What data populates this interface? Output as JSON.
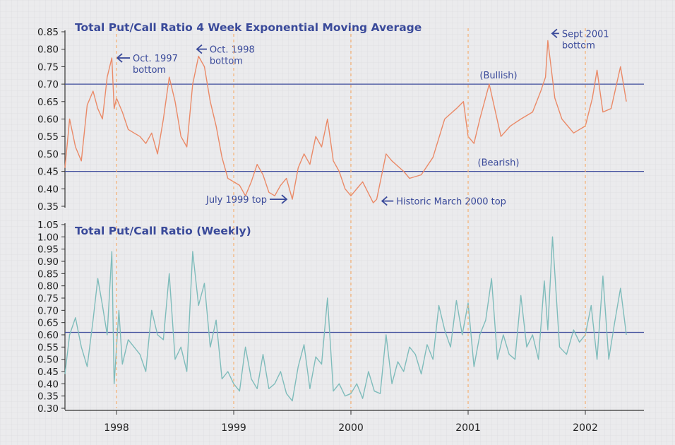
{
  "chart_data": [
    {
      "type": "line",
      "title": "Total Put/Call Ratio 4 Week Exponential Moving Average",
      "ylim": [
        0.35,
        0.85
      ],
      "yticks": [
        "0.85",
        "0.80",
        "0.75",
        "0.70",
        "0.65",
        "0.60",
        "0.55",
        "0.50",
        "0.45",
        "0.40",
        "0.35"
      ],
      "yticks_values": [
        0.85,
        0.8,
        0.75,
        0.7,
        0.65,
        0.6,
        0.55,
        0.5,
        0.45,
        0.4,
        0.35
      ],
      "reference_lines": [
        {
          "label": "(Bullish)",
          "value": 0.7
        },
        {
          "label": "(Bearish)",
          "value": 0.45
        }
      ],
      "annotations": [
        {
          "label_lines": [
            "Oct. 1997",
            "bottom"
          ],
          "x": 1997.97,
          "y": 0.775
        },
        {
          "label_lines": [
            "Oct. 1998",
            "bottom"
          ],
          "x": 1998.65,
          "y": 0.78
        },
        {
          "label_lines": [
            "July 1999 top"
          ],
          "x": 1999.5,
          "y": 0.37
        },
        {
          "label_lines": [
            "Historic March 2000 top"
          ],
          "x": 2000.23,
          "y": 0.365
        },
        {
          "label_lines": [
            "Sept 2001",
            "bottom"
          ],
          "x": 2001.68,
          "y": 0.825
        }
      ],
      "line_color": "#ea8a68",
      "series": [
        {
          "x": [
            1997.56,
            1997.6,
            1997.65,
            1997.7,
            1997.75,
            1997.8,
            1997.84,
            1997.88,
            1997.92,
            1997.96,
            1997.98,
            2000.0,
            2000.1,
            2000.19,
            2000.22,
            2000.3,
            2000.35,
            2000.45,
            2000.5,
            2000.6,
            2000.7,
            2000.8,
            2000.9,
            2000.96,
            2001.0,
            2001.05,
            2001.1,
            2001.18,
            2001.28,
            2001.36,
            2001.45,
            2001.55,
            2001.62,
            2001.66,
            2001.68,
            2001.74,
            2001.8,
            2001.9,
            2002.0,
            2002.06,
            2002.1,
            2002.15,
            2002.22,
            2002.3,
            2002.35
          ],
          "y": [
            0.46,
            0.6,
            0.52,
            0.48,
            0.64,
            0.68,
            0.63,
            0.6,
            0.72,
            0.775,
            0.63,
            0.38,
            0.42,
            0.36,
            0.37,
            0.5,
            0.48,
            0.45,
            0.43,
            0.44,
            0.49,
            0.6,
            0.63,
            0.65,
            0.55,
            0.53,
            0.6,
            0.7,
            0.55,
            0.58,
            0.6,
            0.62,
            0.68,
            0.72,
            0.825,
            0.66,
            0.6,
            0.56,
            0.58,
            0.66,
            0.74,
            0.62,
            0.63,
            0.75,
            0.65
          ]
        }
      ],
      "extra_points": {
        "x": [
          1998.0,
          1998.05,
          1998.1,
          1998.15,
          1998.2,
          1998.25,
          1998.3,
          1998.35,
          1998.4,
          1998.45,
          1998.5,
          1998.55,
          1998.6,
          1998.65,
          1998.7,
          1998.75,
          1998.8,
          1998.85,
          1998.9,
          1998.95,
          1999.0,
          1999.05,
          1999.1,
          1999.15,
          1999.2,
          1999.25,
          1999.3,
          1999.35,
          1999.4,
          1999.45,
          1999.5,
          1999.55,
          1999.6,
          1999.65,
          1999.7,
          1999.75,
          1999.8,
          1999.85,
          1999.9,
          1999.95
        ],
        "y": [
          0.66,
          0.62,
          0.57,
          0.56,
          0.55,
          0.53,
          0.56,
          0.5,
          0.6,
          0.72,
          0.65,
          0.55,
          0.52,
          0.7,
          0.78,
          0.75,
          0.65,
          0.58,
          0.49,
          0.43,
          0.42,
          0.41,
          0.38,
          0.42,
          0.47,
          0.44,
          0.39,
          0.38,
          0.41,
          0.43,
          0.37,
          0.46,
          0.5,
          0.47,
          0.55,
          0.52,
          0.6,
          0.48,
          0.45,
          0.4
        ]
      }
    },
    {
      "type": "line",
      "title": "Total Put/Call Ratio (Weekly)",
      "ylim": [
        0.28,
        1.05
      ],
      "yticks": [
        "1.05",
        "1.00",
        "0.95",
        "0.90",
        "0.85",
        "0.80",
        "0.75",
        "0.70",
        "0.65",
        "0.60",
        "0.55",
        "0.50",
        "0.45",
        "0.40",
        "0.35",
        "0.30"
      ],
      "yticks_values": [
        1.05,
        1.0,
        0.95,
        0.9,
        0.85,
        0.8,
        0.75,
        0.7,
        0.65,
        0.6,
        0.55,
        0.5,
        0.45,
        0.4,
        0.35,
        0.3
      ],
      "reference_lines": [
        {
          "label": "",
          "value": 0.61
        }
      ],
      "line_color": "#7fbcbb",
      "series": [
        {
          "x": [
            1997.56,
            1997.6,
            1997.65,
            1997.7,
            1997.75,
            1997.8,
            1997.84,
            1997.88,
            1997.92,
            1997.96,
            1997.98,
            1998.02,
            1998.05,
            1998.1,
            1998.15,
            1998.2,
            1998.25,
            1998.3,
            1998.35,
            1998.4,
            1998.45,
            1998.5,
            1998.55,
            1998.6,
            1998.65,
            1998.7,
            1998.75,
            1998.8,
            1998.85,
            1998.9,
            1998.95,
            1999.0,
            1999.05,
            1999.1,
            1999.15,
            1999.2,
            1999.25,
            1999.3,
            1999.35,
            1999.4,
            1999.45,
            1999.5,
            1999.55,
            1999.6,
            1999.65,
            1999.7,
            1999.75,
            1999.8,
            1999.85,
            1999.9,
            1999.95,
            2000.0,
            2000.05,
            2000.1,
            2000.15,
            2000.2,
            2000.25,
            2000.3,
            2000.35,
            2000.4,
            2000.45,
            2000.5,
            2000.55,
            2000.6,
            2000.65,
            2000.7,
            2000.75,
            2000.8,
            2000.85,
            2000.9,
            2000.95,
            2001.0,
            2001.05,
            2001.1,
            2001.15,
            2001.2,
            2001.25,
            2001.3,
            2001.35,
            2001.4,
            2001.45,
            2001.5,
            2001.55,
            2001.6,
            2001.65,
            2001.68,
            2001.72,
            2001.78,
            2001.84,
            2001.9,
            2001.95,
            2002.0,
            2002.05,
            2002.1,
            2002.15,
            2002.2,
            2002.25,
            2002.3,
            2002.35
          ],
          "y": [
            0.44,
            0.6,
            0.67,
            0.55,
            0.47,
            0.66,
            0.83,
            0.72,
            0.6,
            0.94,
            0.4,
            0.7,
            0.48,
            0.58,
            0.55,
            0.52,
            0.45,
            0.7,
            0.6,
            0.58,
            0.85,
            0.5,
            0.55,
            0.45,
            0.94,
            0.72,
            0.81,
            0.55,
            0.66,
            0.42,
            0.45,
            0.4,
            0.37,
            0.55,
            0.42,
            0.38,
            0.52,
            0.38,
            0.4,
            0.45,
            0.36,
            0.33,
            0.47,
            0.56,
            0.38,
            0.51,
            0.48,
            0.75,
            0.37,
            0.4,
            0.35,
            0.36,
            0.4,
            0.34,
            0.45,
            0.37,
            0.36,
            0.6,
            0.4,
            0.49,
            0.45,
            0.55,
            0.52,
            0.44,
            0.56,
            0.5,
            0.72,
            0.62,
            0.55,
            0.74,
            0.6,
            0.73,
            0.47,
            0.6,
            0.66,
            0.83,
            0.5,
            0.6,
            0.52,
            0.5,
            0.76,
            0.55,
            0.6,
            0.5,
            0.82,
            0.62,
            1.0,
            0.55,
            0.52,
            0.62,
            0.57,
            0.6,
            0.72,
            0.5,
            0.84,
            0.5,
            0.65,
            0.79,
            0.6
          ]
        }
      ]
    }
  ],
  "xaxis": {
    "ticks": [
      "1998",
      "1999",
      "2000",
      "2001",
      "2002"
    ],
    "tick_values": [
      1998,
      1999,
      2000,
      2001,
      2002
    ],
    "range": [
      1997.56,
      2002.5
    ]
  },
  "colors": {
    "title": "#3a4a9a",
    "annotation": "#3a4a9a",
    "reference_line": "#3e4c9c",
    "year_divider": "#f4b37a",
    "axis": "#333333",
    "grid": "#d8d8dc"
  }
}
